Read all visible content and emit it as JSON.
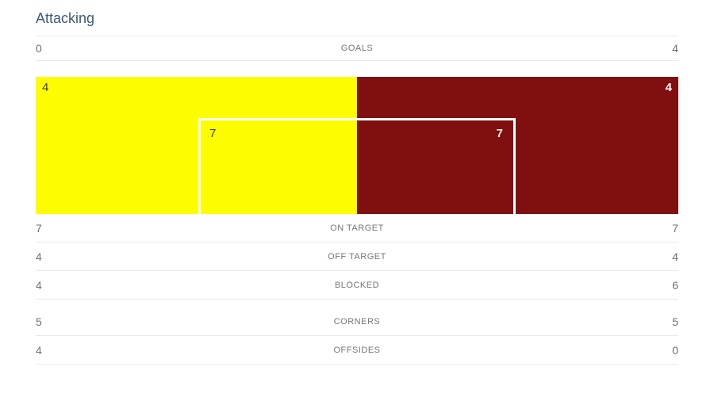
{
  "header": {
    "title": "Attacking"
  },
  "colors": {
    "home_color": "#fdfd00",
    "away_color": "#800f0f",
    "title_color": "#3d5a75",
    "label_color": "#757575",
    "value_color": "#6f6f6f",
    "separator_color": "#e9e9e9",
    "home_text_color": "#44391b",
    "away_text_color": "#ffffff",
    "frame_color": "#ffffff",
    "frame_num_away_color": "#f8f0e1"
  },
  "shot_viz": {
    "home_off_target": "4",
    "away_off_target": "4",
    "home_on_target": "7",
    "away_on_target": "7"
  },
  "rows": [
    {
      "label": "GOALS",
      "home": "0",
      "away": "4"
    },
    {
      "label": "ON TARGET",
      "home": "7",
      "away": "7"
    },
    {
      "label": "OFF TARGET",
      "home": "4",
      "away": "4"
    },
    {
      "label": "BLOCKED",
      "home": "4",
      "away": "6"
    },
    {
      "label": "CORNERS",
      "home": "5",
      "away": "5"
    },
    {
      "label": "OFFSIDES",
      "home": "4",
      "away": "0"
    }
  ],
  "chart_data": [
    {
      "type": "shot-boxes",
      "title": "Attacking",
      "description": "Split goal-mouth visualization: outer colored area = off-target shots, inner white goal frame = on-target shots",
      "series": [
        {
          "name": "home",
          "side": "left",
          "color": "#fdfd00",
          "off_target": 4,
          "on_target": 7
        },
        {
          "name": "away",
          "side": "right",
          "color": "#800f0f",
          "off_target": 4,
          "on_target": 7
        }
      ]
    },
    {
      "type": "table",
      "categories": [
        "GOALS",
        "ON TARGET",
        "OFF TARGET",
        "BLOCKED",
        "CORNERS",
        "OFFSIDES"
      ],
      "series": [
        {
          "name": "home",
          "values": [
            0,
            7,
            4,
            4,
            5,
            4
          ]
        },
        {
          "name": "away",
          "values": [
            4,
            7,
            4,
            6,
            5,
            0
          ]
        }
      ]
    }
  ]
}
